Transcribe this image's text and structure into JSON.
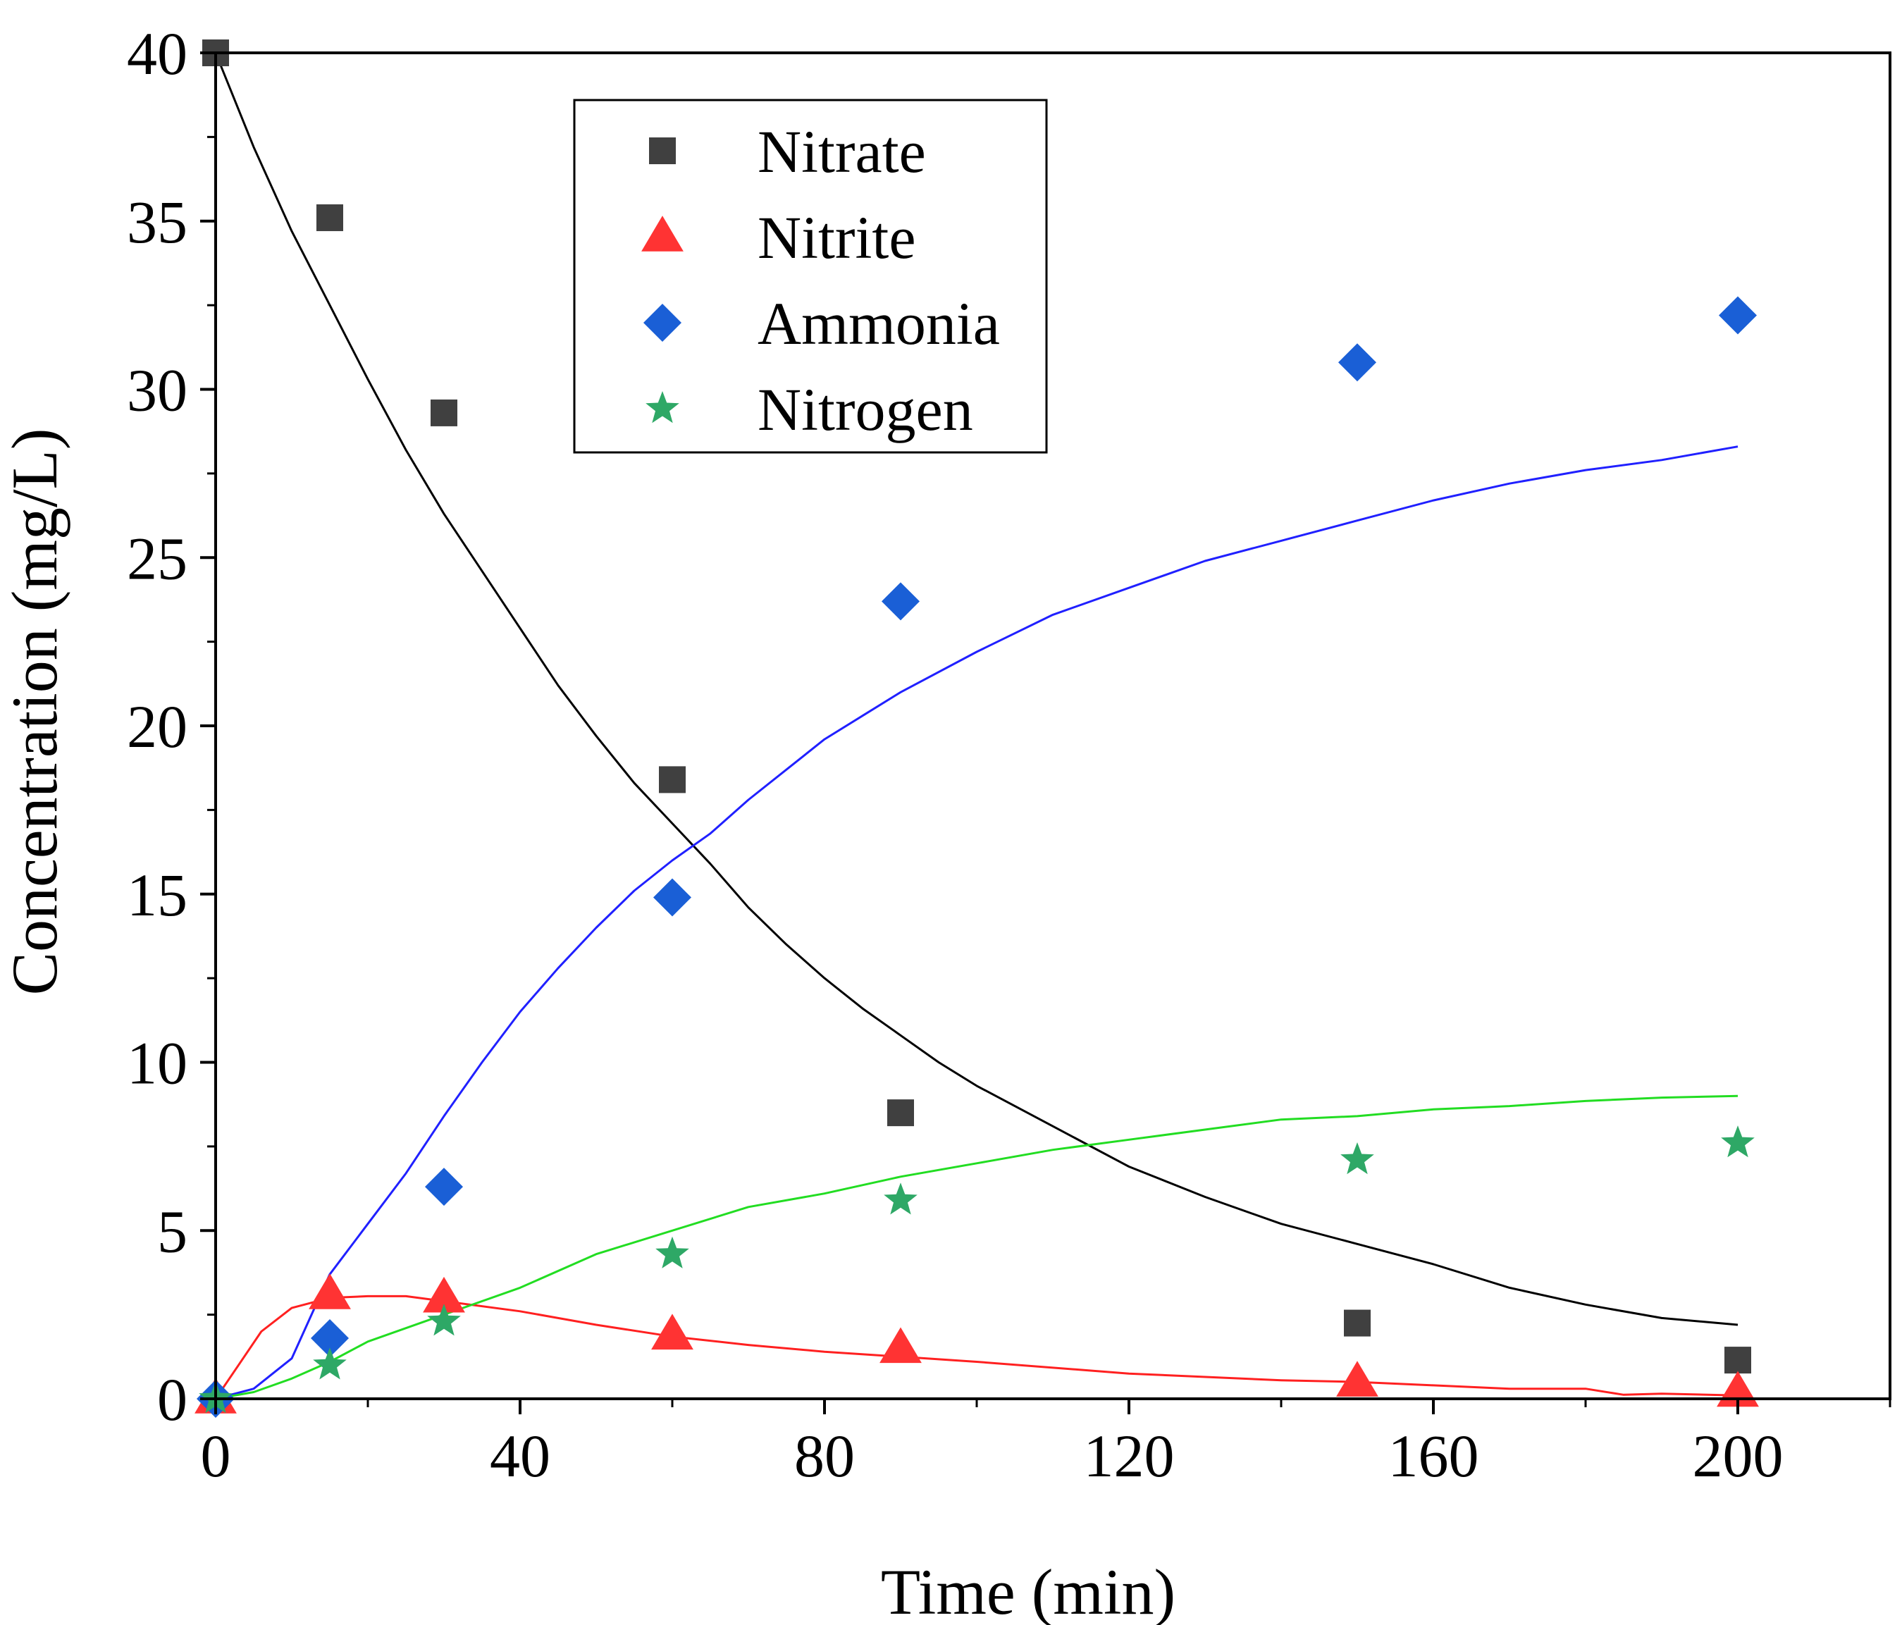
{
  "chart_data": {
    "type": "scatter",
    "title": "",
    "xlabel": "Time (min)",
    "ylabel": "Concentration (mg/L)",
    "xlim": [
      0,
      220
    ],
    "ylim": [
      0,
      40
    ],
    "x_ticks": [
      0,
      40,
      80,
      120,
      160,
      200
    ],
    "x_tick_labels": [
      "0",
      "40",
      "80",
      "120",
      "160",
      "200"
    ],
    "y_ticks": [
      0,
      5,
      10,
      15,
      20,
      25,
      30,
      35,
      40
    ],
    "y_tick_labels": [
      "0",
      "5",
      "10",
      "15",
      "20",
      "25",
      "30",
      "35",
      "40"
    ],
    "grid": false,
    "legend_position": "top-center",
    "series": [
      {
        "name": "Nitrate",
        "marker": "square",
        "marker_color": "#404040",
        "line_color": "#000000",
        "points": [
          [
            0,
            40
          ],
          [
            15,
            35.1
          ],
          [
            30,
            29.3
          ],
          [
            60,
            18.4
          ],
          [
            90,
            8.5
          ],
          [
            150,
            2.25
          ],
          [
            200,
            1.15
          ]
        ],
        "model": [
          [
            0,
            40
          ],
          [
            5,
            37.2
          ],
          [
            10,
            34.7
          ],
          [
            15,
            32.5
          ],
          [
            20,
            30.3
          ],
          [
            25,
            28.2
          ],
          [
            30,
            26.3
          ],
          [
            35,
            24.6
          ],
          [
            40,
            22.9
          ],
          [
            45,
            21.2
          ],
          [
            50,
            19.7
          ],
          [
            55,
            18.3
          ],
          [
            60,
            17.1
          ],
          [
            65,
            15.9
          ],
          [
            70,
            14.6
          ],
          [
            75,
            13.5
          ],
          [
            80,
            12.5
          ],
          [
            85,
            11.6
          ],
          [
            90,
            10.8
          ],
          [
            95,
            10.0
          ],
          [
            100,
            9.3
          ],
          [
            110,
            8.1
          ],
          [
            120,
            6.9
          ],
          [
            130,
            6.0
          ],
          [
            140,
            5.2
          ],
          [
            150,
            4.6
          ],
          [
            160,
            4.0
          ],
          [
            170,
            3.3
          ],
          [
            180,
            2.8
          ],
          [
            190,
            2.4
          ],
          [
            200,
            2.2
          ]
        ]
      },
      {
        "name": "Nitrite",
        "marker": "triangle",
        "marker_color": "#ff3333",
        "line_color": "#ff2020",
        "points": [
          [
            0,
            0
          ],
          [
            15,
            3.1
          ],
          [
            30,
            3.0
          ],
          [
            60,
            1.9
          ],
          [
            90,
            1.5
          ],
          [
            150,
            0.5
          ],
          [
            200,
            0.2
          ]
        ],
        "model": [
          [
            0,
            0
          ],
          [
            3,
            1.0
          ],
          [
            6,
            2.0
          ],
          [
            10,
            2.7
          ],
          [
            15,
            3.0
          ],
          [
            20,
            3.05
          ],
          [
            25,
            3.05
          ],
          [
            30,
            2.9
          ],
          [
            40,
            2.6
          ],
          [
            50,
            2.2
          ],
          [
            60,
            1.85
          ],
          [
            70,
            1.6
          ],
          [
            80,
            1.4
          ],
          [
            90,
            1.25
          ],
          [
            100,
            1.1
          ],
          [
            120,
            0.75
          ],
          [
            140,
            0.55
          ],
          [
            150,
            0.5
          ],
          [
            160,
            0.4
          ],
          [
            170,
            0.3
          ],
          [
            180,
            0.3
          ],
          [
            185,
            0.12
          ],
          [
            190,
            0.15
          ],
          [
            200,
            0.1
          ]
        ]
      },
      {
        "name": "Ammonia",
        "marker": "diamond",
        "marker_color": "#1a5fd6",
        "line_color": "#2020ff",
        "points": [
          [
            0,
            0
          ],
          [
            15,
            1.8
          ],
          [
            30,
            6.3
          ],
          [
            60,
            14.9
          ],
          [
            90,
            23.7
          ],
          [
            150,
            30.8
          ],
          [
            200,
            32.2
          ]
        ],
        "model": [
          [
            0,
            0
          ],
          [
            5,
            0.3
          ],
          [
            10,
            1.2
          ],
          [
            15,
            3.7
          ],
          [
            20,
            5.2
          ],
          [
            25,
            6.7
          ],
          [
            30,
            8.4
          ],
          [
            35,
            10.0
          ],
          [
            40,
            11.5
          ],
          [
            45,
            12.8
          ],
          [
            50,
            14.0
          ],
          [
            55,
            15.1
          ],
          [
            60,
            16.0
          ],
          [
            65,
            16.8
          ],
          [
            70,
            17.8
          ],
          [
            75,
            18.7
          ],
          [
            80,
            19.6
          ],
          [
            85,
            20.3
          ],
          [
            90,
            21.0
          ],
          [
            100,
            22.2
          ],
          [
            110,
            23.3
          ],
          [
            120,
            24.1
          ],
          [
            130,
            24.9
          ],
          [
            140,
            25.5
          ],
          [
            150,
            26.1
          ],
          [
            160,
            26.7
          ],
          [
            170,
            27.2
          ],
          [
            180,
            27.6
          ],
          [
            190,
            27.9
          ],
          [
            200,
            28.3
          ]
        ]
      },
      {
        "name": "Nitrogen",
        "marker": "star",
        "marker_color": "#2ea866",
        "line_color": "#22dd22",
        "points": [
          [
            0,
            0
          ],
          [
            15,
            1.0
          ],
          [
            30,
            2.3
          ],
          [
            60,
            4.3
          ],
          [
            90,
            5.9
          ],
          [
            150,
            7.1
          ],
          [
            200,
            7.6
          ]
        ],
        "model": [
          [
            0,
            0
          ],
          [
            5,
            0.2
          ],
          [
            10,
            0.6
          ],
          [
            15,
            1.1
          ],
          [
            20,
            1.7
          ],
          [
            25,
            2.1
          ],
          [
            30,
            2.5
          ],
          [
            40,
            3.3
          ],
          [
            50,
            4.3
          ],
          [
            60,
            5.0
          ],
          [
            70,
            5.7
          ],
          [
            80,
            6.1
          ],
          [
            90,
            6.6
          ],
          [
            100,
            7.0
          ],
          [
            110,
            7.4
          ],
          [
            120,
            7.7
          ],
          [
            130,
            8.0
          ],
          [
            140,
            8.3
          ],
          [
            150,
            8.4
          ],
          [
            160,
            8.6
          ],
          [
            170,
            8.7
          ],
          [
            180,
            8.85
          ],
          [
            190,
            8.95
          ],
          [
            200,
            9.0
          ]
        ]
      }
    ]
  }
}
